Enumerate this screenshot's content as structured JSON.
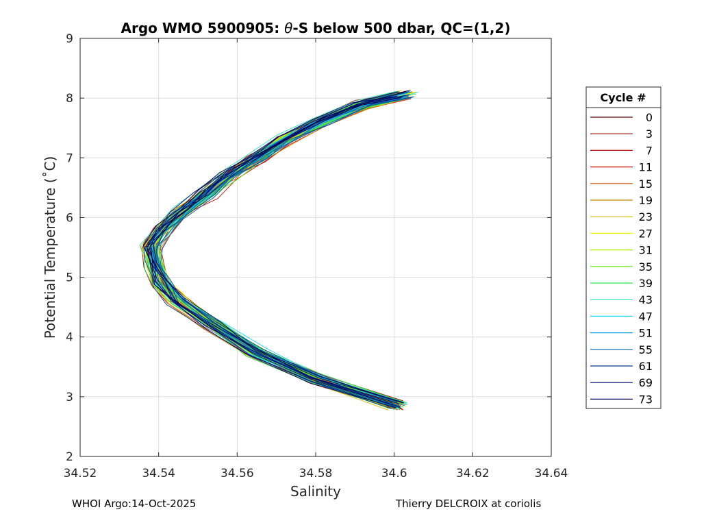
{
  "chart_data": {
    "type": "line",
    "title_prefix": "Argo WMO 5900905: ",
    "title_theta": "θ",
    "title_suffix": "-S below 500 dbar,  QC=(1,2)",
    "xlabel": "Salinity",
    "ylabel": "Potential Temperature (˚C)",
    "xlim": [
      34.52,
      34.64
    ],
    "ylim": [
      2,
      9
    ],
    "xticks": [
      "34.52",
      "34.54",
      "34.56",
      "34.58",
      "34.6",
      "34.62",
      "34.64"
    ],
    "yticks": [
      "2",
      "3",
      "4",
      "5",
      "6",
      "7",
      "8",
      "9"
    ],
    "grid": true,
    "legend": {
      "title": "Cycle #",
      "placement": "right, outside",
      "entries": [
        {
          "name": "0",
          "color": "#5a0000"
        },
        {
          "name": "3",
          "color": "#8b0000"
        },
        {
          "name": "7",
          "color": "#b40000"
        },
        {
          "name": "11",
          "color": "#c80a00"
        },
        {
          "name": "15",
          "color": "#d24600"
        },
        {
          "name": "19",
          "color": "#c88200"
        },
        {
          "name": "23",
          "color": "#d2be00"
        },
        {
          "name": "27",
          "color": "#f0f000"
        },
        {
          "name": "31",
          "color": "#b4ee00"
        },
        {
          "name": "35",
          "color": "#50e600"
        },
        {
          "name": "39",
          "color": "#28e650"
        },
        {
          "name": "43",
          "color": "#1ee6b4"
        },
        {
          "name": "47",
          "color": "#1ed2f0"
        },
        {
          "name": "51",
          "color": "#00a0e6"
        },
        {
          "name": "55",
          "color": "#0064b4"
        },
        {
          "name": "61",
          "color": "#003c96"
        },
        {
          "name": "69",
          "color": "#00006e"
        },
        {
          "name": "73",
          "color": "#000050"
        }
      ]
    },
    "profile_shape": {
      "points": [
        [
          34.601,
          2.85
        ],
        [
          34.58,
          3.3
        ],
        [
          34.565,
          3.75
        ],
        [
          34.554,
          4.2
        ],
        [
          34.545,
          4.6
        ],
        [
          34.541,
          4.9
        ],
        [
          34.539,
          5.2
        ],
        [
          34.538,
          5.5
        ],
        [
          34.541,
          5.8
        ],
        [
          34.546,
          6.1
        ],
        [
          34.552,
          6.4
        ],
        [
          34.558,
          6.7
        ],
        [
          34.565,
          7.0
        ],
        [
          34.572,
          7.3
        ],
        [
          34.581,
          7.6
        ],
        [
          34.592,
          7.9
        ],
        [
          34.603,
          8.05
        ]
      ]
    }
  },
  "footer": {
    "left": "WHOI Argo:14-Oct-2025",
    "right": "Thierry DELCROIX at coriolis"
  }
}
